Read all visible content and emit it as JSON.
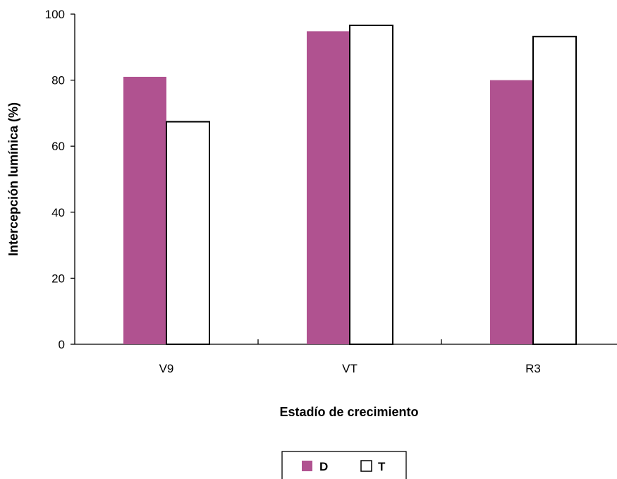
{
  "chart_data": {
    "type": "bar",
    "title": "",
    "xlabel": "Estadío de crecimiento",
    "ylabel": "Intercepción lumínica (%)",
    "categories": [
      "V9",
      "VT",
      "R3"
    ],
    "ylim": [
      0,
      100
    ],
    "yticks": [
      0,
      20,
      40,
      60,
      80,
      100
    ],
    "grid": false,
    "legend_position": "bottom",
    "series": [
      {
        "name": "D",
        "values": [
          81,
          94.8,
          80
        ],
        "color": "#b05290"
      },
      {
        "name": "T",
        "values": [
          67.4,
          96.6,
          93.2
        ],
        "color": "#ffffff"
      }
    ]
  }
}
